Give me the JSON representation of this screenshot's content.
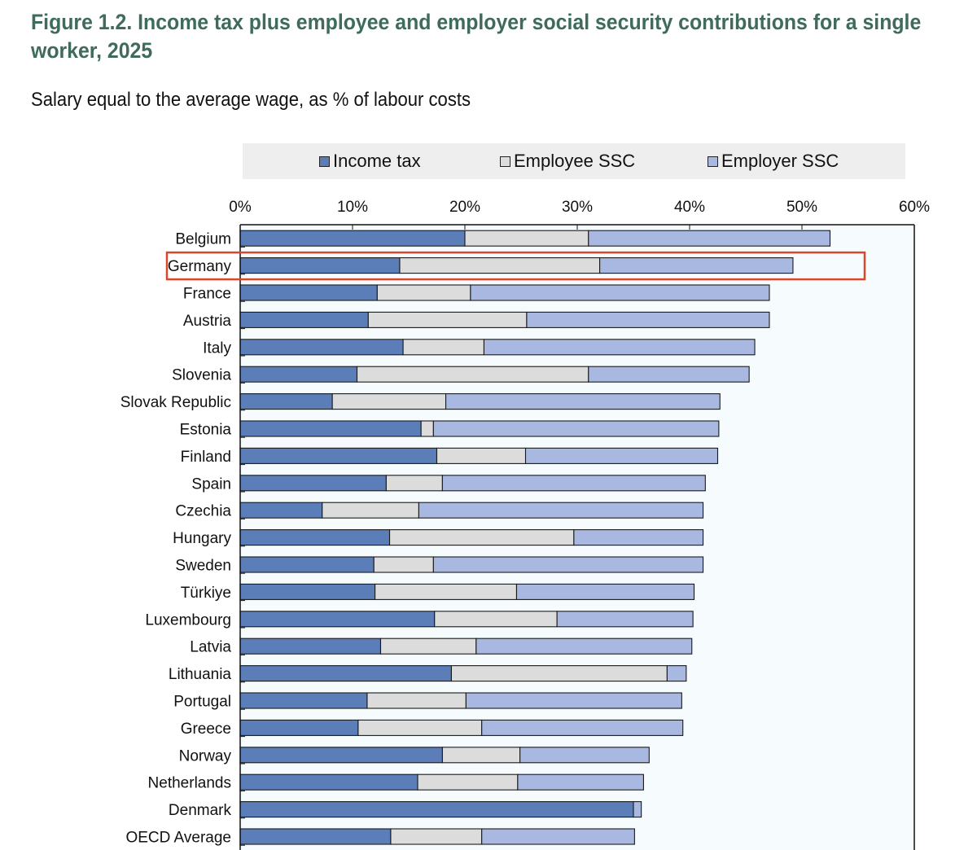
{
  "title_line1": "Figure 1.2. Income tax plus employee and employer social security contributions for a single",
  "title_line2": "worker, 2025",
  "subtitle": "Salary equal to the average wage, as % of labour costs",
  "colors": {
    "income_tax": "#5b7db8",
    "employee_ssc": "#dcdcdc",
    "employer_ssc": "#a8b8e0",
    "highlight": "#d9472b",
    "plot_bg": "#f6fcfe"
  },
  "chart_data": {
    "type": "bar",
    "orientation": "horizontal",
    "stacked": true,
    "xlim": [
      0,
      60
    ],
    "x_ticks": [
      "0%",
      "10%",
      "20%",
      "30%",
      "40%",
      "50%",
      "60%"
    ],
    "legend_position": "top",
    "grid": false,
    "categories": [
      "Belgium",
      "Germany",
      "France",
      "Austria",
      "Italy",
      "Slovenia",
      "Slovak Republic",
      "Estonia",
      "Finland",
      "Spain",
      "Czechia",
      "Hungary",
      "Sweden",
      "Türkiye",
      "Luxembourg",
      "Latvia",
      "Lithuania",
      "Portugal",
      "Greece",
      "Norway",
      "Netherlands",
      "Denmark",
      "OECD Average"
    ],
    "highlighted_category": "Germany",
    "series": [
      {
        "name": "Income tax",
        "values": [
          20.0,
          14.2,
          12.2,
          11.4,
          14.5,
          10.4,
          8.2,
          16.1,
          17.5,
          13.0,
          7.3,
          13.3,
          11.9,
          12.0,
          17.3,
          12.5,
          18.8,
          11.3,
          10.5,
          18.0,
          15.8,
          35.0,
          13.4
        ]
      },
      {
        "name": "Employee SSC",
        "values": [
          11.0,
          17.8,
          8.3,
          14.1,
          7.2,
          20.6,
          10.1,
          1.1,
          7.9,
          5.0,
          8.6,
          16.4,
          5.3,
          12.6,
          10.9,
          8.5,
          19.2,
          8.8,
          11.0,
          6.9,
          8.9,
          0.0,
          8.1
        ]
      },
      {
        "name": "Employer SSC",
        "values": [
          21.5,
          17.2,
          26.6,
          21.6,
          24.1,
          14.3,
          24.4,
          25.4,
          17.1,
          23.4,
          25.3,
          11.5,
          24.0,
          15.8,
          12.1,
          19.2,
          1.7,
          19.2,
          17.9,
          11.5,
          11.2,
          0.7,
          13.6
        ]
      }
    ]
  }
}
